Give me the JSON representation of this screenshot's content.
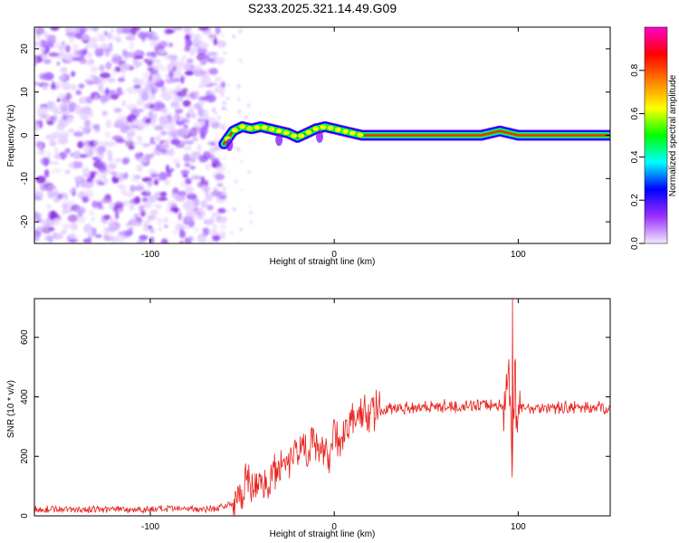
{
  "title": "S233.2025.321.14.49.G09",
  "chart_data": [
    {
      "type": "heatmap",
      "xlabel": "Height of straight line (km)",
      "ylabel": "Frequency (Hz)",
      "xlim": [
        -163,
        150
      ],
      "ylim": [
        -25,
        25
      ],
      "xticks": [
        -100,
        0,
        100
      ],
      "yticks": [
        -20,
        -10,
        0,
        10,
        20
      ],
      "xtick_labels": [
        "-100",
        "0",
        "100"
      ],
      "ytick_labels": [
        "-20",
        "-10",
        "0",
        "10",
        "20"
      ],
      "noise_region_x": [
        -163,
        -60
      ],
      "ridge": {
        "x": [
          -60,
          -55,
          -50,
          -45,
          -40,
          -35,
          -30,
          -25,
          -20,
          -15,
          -10,
          -5,
          0,
          5,
          10,
          15,
          20,
          30,
          40,
          50,
          60,
          70,
          80,
          85,
          90,
          95,
          100,
          120,
          150
        ],
        "freq": [
          -2,
          1,
          2,
          1.5,
          2,
          1.5,
          1,
          0.5,
          -0.5,
          0.5,
          1.5,
          2,
          1.5,
          1,
          0.5,
          0,
          0,
          0,
          0,
          0,
          0,
          0,
          0,
          0.5,
          1,
          0.5,
          0,
          0,
          0
        ]
      },
      "colorbar": {
        "label": "Normalized spectral amplitude",
        "range": [
          0,
          1
        ],
        "ticks": [
          0.0,
          0.2,
          0.4,
          0.6,
          0.8
        ],
        "tick_labels": [
          "0.0",
          "0.2",
          "0.4",
          "0.6",
          "0.8"
        ],
        "colors": [
          "#f4eaff",
          "#9b30ff",
          "#0000ff",
          "#00ffff",
          "#00ff00",
          "#ffff00",
          "#ff8000",
          "#ff0000",
          "#ff00cc"
        ]
      }
    },
    {
      "type": "line",
      "xlabel": "Height of straight line (km)",
      "ylabel": "SNR (10 * v/v)",
      "xlim": [
        -163,
        150
      ],
      "ylim": [
        0,
        730
      ],
      "xticks": [
        -100,
        0,
        100
      ],
      "yticks": [
        0,
        200,
        400,
        600
      ],
      "xtick_labels": [
        "-100",
        "0",
        "100"
      ],
      "ytick_labels": [
        "0",
        "200",
        "400",
        "600"
      ],
      "series_color": "#e8201c",
      "series": [
        {
          "name": "SNR",
          "x": [
            -163,
            -140,
            -120,
            -100,
            -80,
            -65,
            -55,
            -50,
            -48,
            -45,
            -40,
            -35,
            -32,
            -30,
            -28,
            -25,
            -22,
            -20,
            -18,
            -15,
            -12,
            -10,
            -8,
            -5,
            -3,
            0,
            3,
            5,
            8,
            10,
            12,
            15,
            18,
            20,
            25,
            30,
            35,
            40,
            50,
            60,
            70,
            80,
            90,
            93,
            95,
            96,
            97,
            98,
            99,
            100,
            105,
            110,
            120,
            130,
            140,
            150
          ],
          "y": [
            22,
            22,
            22,
            22,
            23,
            25,
            40,
            70,
            130,
            90,
            110,
            120,
            160,
            140,
            210,
            180,
            240,
            200,
            250,
            220,
            260,
            230,
            180,
            250,
            200,
            270,
            260,
            280,
            300,
            320,
            330,
            340,
            345,
            350,
            355,
            360,
            362,
            365,
            368,
            368,
            370,
            370,
            372,
            360,
            500,
            330,
            200,
            460,
            380,
            360,
            362,
            364,
            365,
            365,
            365,
            365
          ]
        }
      ]
    }
  ]
}
